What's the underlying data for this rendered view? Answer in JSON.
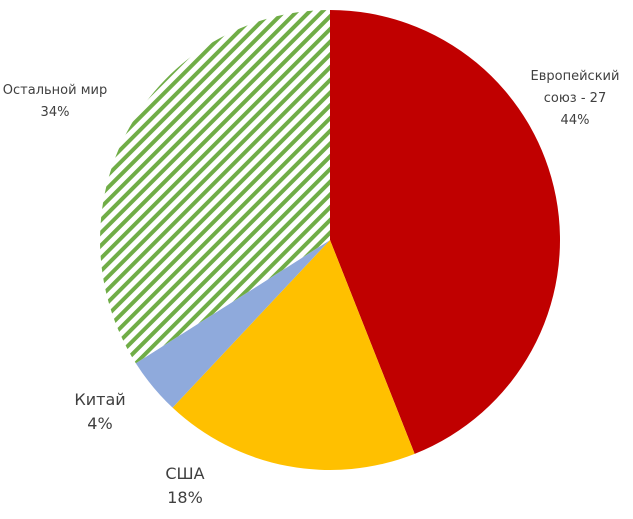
{
  "chart_data": {
    "type": "pie",
    "categories": [
      "Европейский союз - 27",
      "США",
      "Китай",
      "Остальной мир"
    ],
    "values": [
      44,
      18,
      4,
      34
    ],
    "value_labels": [
      "44%",
      "18%",
      "4%",
      "34%"
    ],
    "colors": [
      "#c00000",
      "#ffc000",
      "#8faadc",
      "#70ad47"
    ],
    "hatch": [
      false,
      false,
      false,
      true
    ]
  }
}
